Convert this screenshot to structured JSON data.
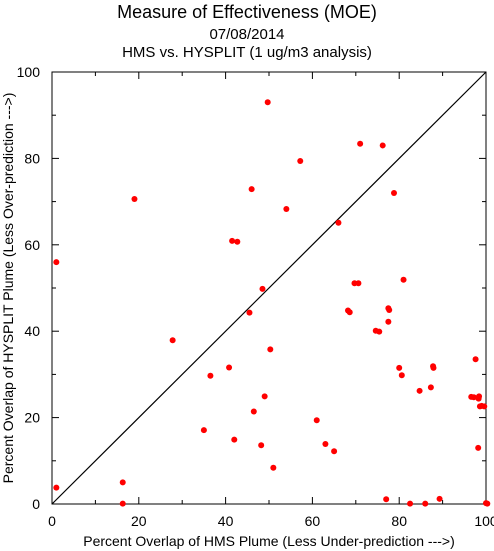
{
  "chart_data": {
    "type": "scatter",
    "title": "Measure of Effectiveness (MOE)",
    "subtitle_date": "07/08/2014",
    "subtitle_analysis": "HMS vs. HYSPLIT  (1 ug/m3 analysis)",
    "xlabel": "Percent Overlap of HMS Plume (Less Under-prediction --->)",
    "ylabel": "Percent Overlap of HYSPLIT Plume (Less Over-prediction --->)",
    "xlim": [
      0,
      100
    ],
    "ylim": [
      0,
      100
    ],
    "x_ticks": [
      "0",
      "20",
      "40",
      "60",
      "80",
      "100"
    ],
    "y_ticks": [
      "0",
      "20",
      "40",
      "60",
      "80",
      "100"
    ],
    "grid": false,
    "reference_line": "diagonal y = x",
    "point_color": "#ff0000",
    "line_color": "#000000",
    "points": [
      {
        "x": 1.0,
        "y": 56.0
      },
      {
        "x": 1.0,
        "y": 3.8
      },
      {
        "x": 16.3,
        "y": 5.0
      },
      {
        "x": 16.3,
        "y": 0.1
      },
      {
        "x": 19.0,
        "y": 70.6
      },
      {
        "x": 27.8,
        "y": 37.9
      },
      {
        "x": 35.0,
        "y": 17.1
      },
      {
        "x": 36.5,
        "y": 29.7
      },
      {
        "x": 40.8,
        "y": 31.6
      },
      {
        "x": 41.5,
        "y": 60.9
      },
      {
        "x": 42.7,
        "y": 60.7
      },
      {
        "x": 42.0,
        "y": 14.9
      },
      {
        "x": 45.5,
        "y": 44.3
      },
      {
        "x": 46.0,
        "y": 72.9
      },
      {
        "x": 46.5,
        "y": 21.4
      },
      {
        "x": 48.2,
        "y": 13.6
      },
      {
        "x": 48.5,
        "y": 49.8
      },
      {
        "x": 49.0,
        "y": 24.9
      },
      {
        "x": 49.7,
        "y": 93.0
      },
      {
        "x": 50.3,
        "y": 35.8
      },
      {
        "x": 51.0,
        "y": 8.4
      },
      {
        "x": 54.0,
        "y": 68.3
      },
      {
        "x": 57.2,
        "y": 79.4
      },
      {
        "x": 61.0,
        "y": 19.4
      },
      {
        "x": 63.0,
        "y": 13.9
      },
      {
        "x": 65.0,
        "y": 12.2
      },
      {
        "x": 66.0,
        "y": 65.1
      },
      {
        "x": 68.2,
        "y": 44.8
      },
      {
        "x": 68.6,
        "y": 44.4
      },
      {
        "x": 69.7,
        "y": 51.1
      },
      {
        "x": 70.6,
        "y": 51.1
      },
      {
        "x": 71.0,
        "y": 83.4
      },
      {
        "x": 74.6,
        "y": 40.1
      },
      {
        "x": 75.4,
        "y": 39.9
      },
      {
        "x": 76.2,
        "y": 83.0
      },
      {
        "x": 77.0,
        "y": 1.1
      },
      {
        "x": 77.5,
        "y": 45.3
      },
      {
        "x": 77.5,
        "y": 42.2
      },
      {
        "x": 77.7,
        "y": 44.9
      },
      {
        "x": 78.8,
        "y": 72.0
      },
      {
        "x": 80.0,
        "y": 31.5
      },
      {
        "x": 80.6,
        "y": 29.8
      },
      {
        "x": 81.0,
        "y": 51.9
      },
      {
        "x": 82.5,
        "y": 0.1
      },
      {
        "x": 84.7,
        "y": 26.2
      },
      {
        "x": 86.0,
        "y": 0.1
      },
      {
        "x": 87.3,
        "y": 27.0
      },
      {
        "x": 87.8,
        "y": 31.9
      },
      {
        "x": 87.9,
        "y": 31.5
      },
      {
        "x": 89.3,
        "y": 1.2
      },
      {
        "x": 96.6,
        "y": 24.8
      },
      {
        "x": 97.2,
        "y": 24.7
      },
      {
        "x": 97.6,
        "y": 33.5
      },
      {
        "x": 98.2,
        "y": 13.0
      },
      {
        "x": 98.3,
        "y": 24.4
      },
      {
        "x": 98.4,
        "y": 24.9
      },
      {
        "x": 98.6,
        "y": 22.6
      },
      {
        "x": 99.0,
        "y": 22.7
      },
      {
        "x": 99.6,
        "y": 22.6
      },
      {
        "x": 100.0,
        "y": 0.2
      },
      {
        "x": 100.3,
        "y": 0.1
      }
    ]
  }
}
